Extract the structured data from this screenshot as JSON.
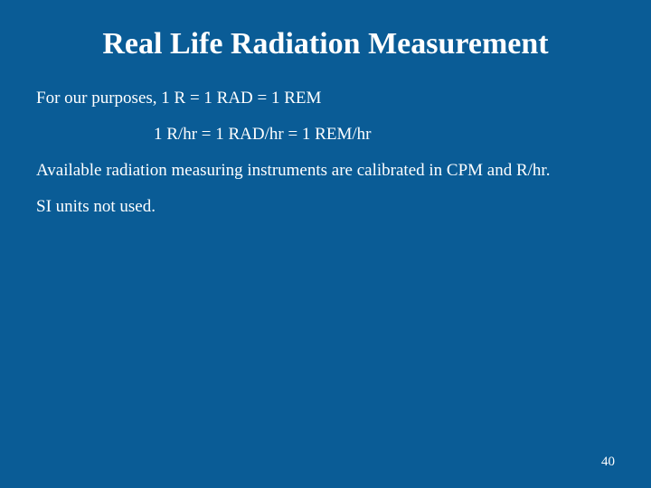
{
  "slide": {
    "title": "Real Life Radiation Measurement",
    "lines": [
      "For our purposes, 1 R = 1 RAD = 1 REM",
      "1 R/hr = 1 RAD/hr = 1 REM/hr",
      "Available radiation measuring instruments are calibrated in CPM and R/hr.",
      "SI units not used."
    ],
    "page_number": "40",
    "background_color": "#0a5c96",
    "text_color": "#ffffff",
    "title_fontsize": 34,
    "body_fontsize": 19,
    "font_family": "Times New Roman"
  }
}
